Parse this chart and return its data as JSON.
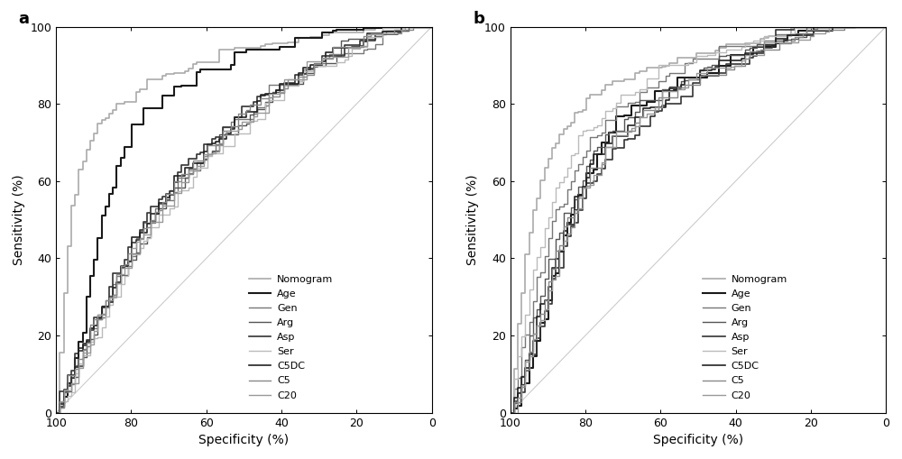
{
  "panel_labels": [
    "a",
    "b"
  ],
  "legend_labels": [
    "Nomogram",
    "Age",
    "Gen",
    "Arg",
    "Asp",
    "Ser",
    "C5DC",
    "C5",
    "C20"
  ],
  "colors": {
    "Nomogram": "#aaaaaa",
    "Age": "#1a1a1a",
    "Gen": "#777777",
    "Arg": "#555555",
    "Asp": "#333333",
    "Ser": "#bbbbbb",
    "C5DC": "#222222",
    "C5": "#888888",
    "C20": "#999999"
  },
  "linewidths": {
    "Nomogram": 1.2,
    "Age": 1.5,
    "Gen": 1.0,
    "Arg": 1.0,
    "Asp": 1.2,
    "Ser": 1.0,
    "C5DC": 1.2,
    "C5": 1.0,
    "C20": 1.0
  },
  "xlabel": "Specificity (%)",
  "ylabel": "Sensitivity (%)",
  "xticks": [
    100,
    80,
    60,
    40,
    20,
    0
  ],
  "yticks": [
    0,
    20,
    40,
    60,
    80,
    100
  ],
  "background_color": "#ffffff",
  "panel_a": {
    "Nomogram": {
      "fpr": [
        0,
        0.02,
        0.04,
        0.06,
        0.08,
        0.1,
        0.12,
        0.15,
        0.18,
        0.2,
        0.22,
        0.25,
        0.28,
        0.3,
        0.32,
        0.35,
        0.38,
        0.4,
        0.42,
        0.45,
        0.48,
        0.5,
        0.55,
        0.6,
        0.65,
        0.7,
        0.75,
        0.8,
        0.85,
        0.9,
        0.95,
        1.0
      ],
      "tpr": [
        0,
        0.3,
        0.52,
        0.62,
        0.68,
        0.72,
        0.75,
        0.78,
        0.8,
        0.82,
        0.83,
        0.85,
        0.86,
        0.87,
        0.88,
        0.89,
        0.9,
        0.91,
        0.92,
        0.93,
        0.94,
        0.94,
        0.95,
        0.96,
        0.97,
        0.97,
        0.98,
        0.98,
        0.99,
        0.99,
        1.0,
        1.0
      ]
    },
    "Age": {
      "fpr": [
        0,
        0.02,
        0.04,
        0.06,
        0.08,
        0.1,
        0.12,
        0.15,
        0.18,
        0.2,
        0.25,
        0.3,
        0.35,
        0.4,
        0.45,
        0.5,
        0.55,
        0.6,
        0.65,
        0.7,
        0.75,
        0.8,
        0.85,
        0.9,
        0.95,
        1.0
      ],
      "tpr": [
        0,
        0.04,
        0.1,
        0.18,
        0.28,
        0.4,
        0.5,
        0.6,
        0.68,
        0.72,
        0.78,
        0.82,
        0.85,
        0.87,
        0.89,
        0.91,
        0.92,
        0.93,
        0.95,
        0.96,
        0.97,
        0.98,
        0.99,
        0.99,
        1.0,
        1.0
      ]
    },
    "Gen": {
      "fpr": [
        0,
        0.02,
        0.05,
        0.08,
        0.1,
        0.12,
        0.15,
        0.18,
        0.2,
        0.25,
        0.3,
        0.35,
        0.4,
        0.45,
        0.5,
        0.55,
        0.6,
        0.65,
        0.7,
        0.75,
        0.8,
        0.85,
        0.9,
        0.95,
        1.0
      ],
      "tpr": [
        0,
        0.05,
        0.12,
        0.18,
        0.22,
        0.26,
        0.32,
        0.38,
        0.42,
        0.5,
        0.56,
        0.62,
        0.67,
        0.72,
        0.76,
        0.8,
        0.83,
        0.86,
        0.89,
        0.92,
        0.94,
        0.96,
        0.98,
        0.99,
        1.0
      ]
    },
    "Arg": {
      "fpr": [
        0,
        0.02,
        0.05,
        0.08,
        0.1,
        0.12,
        0.15,
        0.18,
        0.2,
        0.25,
        0.3,
        0.35,
        0.4,
        0.45,
        0.5,
        0.55,
        0.6,
        0.65,
        0.7,
        0.75,
        0.8,
        0.85,
        0.9,
        0.95,
        1.0
      ],
      "tpr": [
        0,
        0.04,
        0.1,
        0.17,
        0.21,
        0.25,
        0.31,
        0.37,
        0.41,
        0.49,
        0.55,
        0.61,
        0.66,
        0.71,
        0.75,
        0.79,
        0.83,
        0.86,
        0.89,
        0.92,
        0.94,
        0.96,
        0.98,
        0.99,
        1.0
      ]
    },
    "Asp": {
      "fpr": [
        0,
        0.02,
        0.05,
        0.08,
        0.1,
        0.12,
        0.15,
        0.18,
        0.2,
        0.25,
        0.3,
        0.35,
        0.4,
        0.45,
        0.5,
        0.55,
        0.6,
        0.65,
        0.7,
        0.75,
        0.8,
        0.85,
        0.9,
        0.95,
        1.0
      ],
      "tpr": [
        0,
        0.06,
        0.13,
        0.2,
        0.24,
        0.28,
        0.34,
        0.4,
        0.44,
        0.52,
        0.58,
        0.64,
        0.69,
        0.73,
        0.77,
        0.81,
        0.84,
        0.87,
        0.9,
        0.92,
        0.95,
        0.97,
        0.98,
        0.99,
        1.0
      ]
    },
    "Ser": {
      "fpr": [
        0,
        0.02,
        0.05,
        0.08,
        0.1,
        0.12,
        0.15,
        0.18,
        0.2,
        0.25,
        0.3,
        0.35,
        0.4,
        0.45,
        0.5,
        0.55,
        0.6,
        0.65,
        0.7,
        0.75,
        0.8,
        0.85,
        0.9,
        0.95,
        1.0
      ],
      "tpr": [
        0,
        0.04,
        0.09,
        0.15,
        0.19,
        0.23,
        0.29,
        0.35,
        0.39,
        0.47,
        0.53,
        0.59,
        0.64,
        0.69,
        0.73,
        0.77,
        0.81,
        0.84,
        0.88,
        0.91,
        0.94,
        0.96,
        0.98,
        0.99,
        1.0
      ]
    },
    "C5DC": {
      "fpr": [
        0,
        0.02,
        0.05,
        0.08,
        0.1,
        0.12,
        0.15,
        0.18,
        0.2,
        0.25,
        0.3,
        0.35,
        0.4,
        0.45,
        0.5,
        0.55,
        0.6,
        0.65,
        0.7,
        0.75,
        0.8,
        0.85,
        0.9,
        0.95,
        1.0
      ],
      "tpr": [
        0,
        0.05,
        0.12,
        0.19,
        0.23,
        0.27,
        0.33,
        0.39,
        0.43,
        0.51,
        0.57,
        0.63,
        0.68,
        0.73,
        0.77,
        0.81,
        0.84,
        0.87,
        0.9,
        0.93,
        0.95,
        0.97,
        0.98,
        0.99,
        1.0
      ]
    },
    "C5": {
      "fpr": [
        0,
        0.02,
        0.05,
        0.08,
        0.1,
        0.12,
        0.15,
        0.18,
        0.2,
        0.25,
        0.3,
        0.35,
        0.4,
        0.45,
        0.5,
        0.55,
        0.6,
        0.65,
        0.7,
        0.75,
        0.8,
        0.85,
        0.9,
        0.95,
        1.0
      ],
      "tpr": [
        0,
        0.05,
        0.11,
        0.18,
        0.22,
        0.26,
        0.32,
        0.38,
        0.42,
        0.5,
        0.56,
        0.62,
        0.67,
        0.72,
        0.76,
        0.8,
        0.83,
        0.87,
        0.9,
        0.92,
        0.95,
        0.97,
        0.98,
        0.99,
        1.0
      ]
    },
    "C20": {
      "fpr": [
        0,
        0.02,
        0.05,
        0.08,
        0.1,
        0.12,
        0.15,
        0.18,
        0.2,
        0.25,
        0.3,
        0.35,
        0.4,
        0.45,
        0.5,
        0.55,
        0.6,
        0.65,
        0.7,
        0.75,
        0.8,
        0.85,
        0.9,
        0.95,
        1.0
      ],
      "tpr": [
        0,
        0.04,
        0.1,
        0.16,
        0.2,
        0.24,
        0.3,
        0.36,
        0.41,
        0.49,
        0.55,
        0.61,
        0.66,
        0.71,
        0.75,
        0.79,
        0.83,
        0.86,
        0.89,
        0.92,
        0.94,
        0.96,
        0.98,
        0.99,
        1.0
      ]
    }
  },
  "panel_b": {
    "Nomogram": {
      "fpr": [
        0,
        0.02,
        0.04,
        0.06,
        0.08,
        0.1,
        0.12,
        0.15,
        0.18,
        0.2,
        0.22,
        0.25,
        0.28,
        0.3,
        0.35,
        0.4,
        0.45,
        0.5,
        0.55,
        0.6,
        0.65,
        0.7,
        0.75,
        0.8,
        0.85,
        0.9,
        0.95,
        1.0
      ],
      "tpr": [
        0,
        0.22,
        0.4,
        0.52,
        0.6,
        0.66,
        0.7,
        0.74,
        0.78,
        0.8,
        0.82,
        0.84,
        0.85,
        0.86,
        0.88,
        0.9,
        0.91,
        0.92,
        0.94,
        0.95,
        0.96,
        0.97,
        0.98,
        0.99,
        0.99,
        1.0,
        1.0,
        1.0
      ]
    },
    "Age": {
      "fpr": [
        0,
        0.02,
        0.04,
        0.06,
        0.08,
        0.1,
        0.12,
        0.15,
        0.18,
        0.2,
        0.25,
        0.3,
        0.35,
        0.4,
        0.45,
        0.5,
        0.55,
        0.6,
        0.65,
        0.7,
        0.75,
        0.8,
        0.85,
        0.9,
        0.95,
        1.0
      ],
      "tpr": [
        0,
        0.04,
        0.09,
        0.15,
        0.22,
        0.3,
        0.38,
        0.48,
        0.56,
        0.62,
        0.7,
        0.75,
        0.79,
        0.82,
        0.85,
        0.87,
        0.89,
        0.91,
        0.93,
        0.95,
        0.96,
        0.97,
        0.98,
        0.99,
        1.0,
        1.0
      ]
    },
    "Gen": {
      "fpr": [
        0,
        0.02,
        0.04,
        0.06,
        0.08,
        0.1,
        0.12,
        0.15,
        0.18,
        0.2,
        0.25,
        0.3,
        0.35,
        0.4,
        0.45,
        0.5,
        0.55,
        0.6,
        0.65,
        0.7,
        0.75,
        0.8,
        0.85,
        0.9,
        0.95,
        1.0
      ],
      "tpr": [
        0,
        0.1,
        0.2,
        0.3,
        0.38,
        0.46,
        0.52,
        0.58,
        0.64,
        0.68,
        0.74,
        0.78,
        0.82,
        0.85,
        0.87,
        0.89,
        0.91,
        0.93,
        0.94,
        0.96,
        0.97,
        0.98,
        0.99,
        0.99,
        1.0,
        1.0
      ]
    },
    "Arg": {
      "fpr": [
        0,
        0.02,
        0.04,
        0.06,
        0.08,
        0.1,
        0.12,
        0.15,
        0.18,
        0.2,
        0.25,
        0.3,
        0.35,
        0.4,
        0.45,
        0.5,
        0.55,
        0.6,
        0.65,
        0.7,
        0.75,
        0.8,
        0.85,
        0.9,
        0.95,
        1.0
      ],
      "tpr": [
        0,
        0.06,
        0.14,
        0.22,
        0.3,
        0.37,
        0.44,
        0.52,
        0.58,
        0.63,
        0.7,
        0.75,
        0.79,
        0.82,
        0.85,
        0.87,
        0.9,
        0.92,
        0.94,
        0.95,
        0.97,
        0.98,
        0.99,
        0.99,
        1.0,
        1.0
      ]
    },
    "Asp": {
      "fpr": [
        0,
        0.02,
        0.04,
        0.06,
        0.08,
        0.1,
        0.12,
        0.15,
        0.18,
        0.2,
        0.25,
        0.3,
        0.35,
        0.4,
        0.45,
        0.5,
        0.55,
        0.6,
        0.65,
        0.7,
        0.75,
        0.8,
        0.85,
        0.9,
        0.95,
        1.0
      ],
      "tpr": [
        0,
        0.04,
        0.1,
        0.16,
        0.23,
        0.3,
        0.37,
        0.45,
        0.52,
        0.57,
        0.64,
        0.7,
        0.74,
        0.78,
        0.81,
        0.84,
        0.87,
        0.89,
        0.92,
        0.94,
        0.96,
        0.97,
        0.98,
        0.99,
        1.0,
        1.0
      ]
    },
    "Ser": {
      "fpr": [
        0,
        0.02,
        0.04,
        0.06,
        0.08,
        0.1,
        0.12,
        0.15,
        0.18,
        0.2,
        0.25,
        0.3,
        0.35,
        0.4,
        0.45,
        0.5,
        0.55,
        0.6,
        0.65,
        0.7,
        0.75,
        0.8,
        0.85,
        0.9,
        0.95,
        1.0
      ],
      "tpr": [
        0,
        0.14,
        0.26,
        0.36,
        0.44,
        0.52,
        0.58,
        0.64,
        0.69,
        0.72,
        0.77,
        0.81,
        0.84,
        0.87,
        0.89,
        0.91,
        0.92,
        0.94,
        0.95,
        0.96,
        0.97,
        0.98,
        0.99,
        0.99,
        1.0,
        1.0
      ]
    },
    "C5DC": {
      "fpr": [
        0,
        0.02,
        0.04,
        0.06,
        0.08,
        0.1,
        0.12,
        0.15,
        0.18,
        0.2,
        0.25,
        0.3,
        0.35,
        0.4,
        0.45,
        0.5,
        0.55,
        0.6,
        0.65,
        0.7,
        0.75,
        0.8,
        0.85,
        0.9,
        0.95,
        1.0
      ],
      "tpr": [
        0,
        0.05,
        0.12,
        0.19,
        0.26,
        0.33,
        0.4,
        0.48,
        0.55,
        0.6,
        0.67,
        0.72,
        0.77,
        0.81,
        0.84,
        0.87,
        0.89,
        0.91,
        0.93,
        0.95,
        0.96,
        0.97,
        0.98,
        0.99,
        1.0,
        1.0
      ]
    },
    "C5": {
      "fpr": [
        0,
        0.02,
        0.04,
        0.06,
        0.08,
        0.1,
        0.12,
        0.15,
        0.18,
        0.2,
        0.25,
        0.3,
        0.35,
        0.4,
        0.45,
        0.5,
        0.55,
        0.6,
        0.65,
        0.7,
        0.75,
        0.8,
        0.85,
        0.9,
        0.95,
        1.0
      ],
      "tpr": [
        0,
        0.05,
        0.12,
        0.19,
        0.26,
        0.33,
        0.4,
        0.48,
        0.55,
        0.6,
        0.67,
        0.72,
        0.76,
        0.8,
        0.83,
        0.86,
        0.88,
        0.9,
        0.93,
        0.95,
        0.96,
        0.97,
        0.98,
        0.99,
        1.0,
        1.0
      ]
    },
    "C20": {
      "fpr": [
        0,
        0.02,
        0.04,
        0.06,
        0.08,
        0.1,
        0.12,
        0.15,
        0.18,
        0.2,
        0.25,
        0.3,
        0.35,
        0.4,
        0.45,
        0.5,
        0.55,
        0.6,
        0.65,
        0.7,
        0.75,
        0.8,
        0.85,
        0.9,
        0.95,
        1.0
      ],
      "tpr": [
        0,
        0.05,
        0.11,
        0.18,
        0.25,
        0.32,
        0.39,
        0.47,
        0.54,
        0.59,
        0.66,
        0.71,
        0.76,
        0.8,
        0.83,
        0.86,
        0.88,
        0.91,
        0.93,
        0.95,
        0.96,
        0.97,
        0.98,
        0.99,
        1.0,
        1.0
      ]
    }
  }
}
